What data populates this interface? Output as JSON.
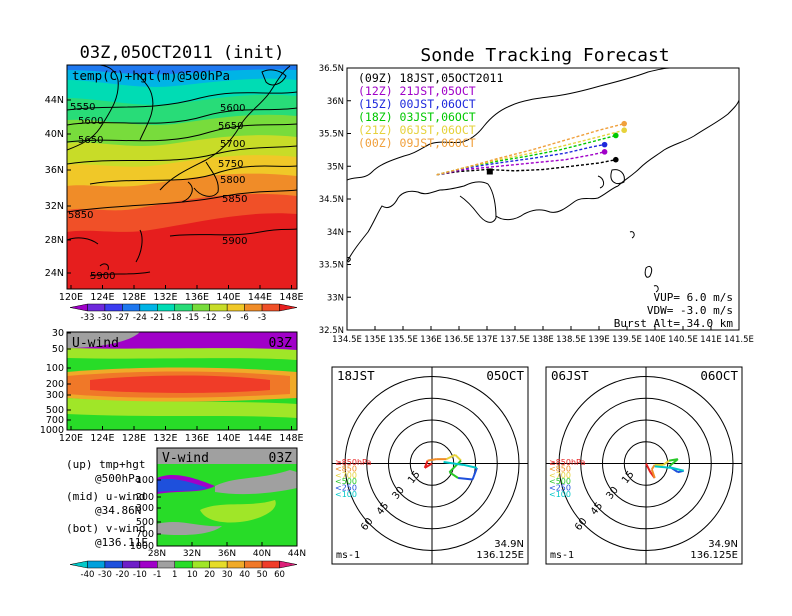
{
  "init_title": "03Z,05OCT2011 (init)",
  "main_title": "Sonde Tracking Forecast",
  "temp_panel": {
    "label": "temp(C)+hgt(m)@500hPa",
    "contours": [
      "5550",
      "5600",
      "5650",
      "5700",
      "5750",
      "5800",
      "5850",
      "5900"
    ],
    "colorbar_ticks": [
      "-33",
      "-30",
      "-27",
      "-24",
      "-21",
      "-18",
      "-15",
      "-12",
      "-9",
      "-6",
      "-3"
    ],
    "colorbar_colors": [
      "#a000c8",
      "#6e28dc",
      "#3c3cf0",
      "#1e78f0",
      "#00b4e6",
      "#00dcb4",
      "#28dc78",
      "#78dc3c",
      "#c8dc28",
      "#f0c828",
      "#f08c28",
      "#f05028",
      "#e61e1e"
    ],
    "lat_ticks": [
      "44N",
      "40N",
      "36N",
      "32N",
      "28N",
      "24N"
    ],
    "lon_ticks": [
      "120E",
      "124E",
      "128E",
      "132E",
      "136E",
      "140E",
      "144E",
      "148E"
    ]
  },
  "u_panel": {
    "label": "U-wind",
    "time": "03Z",
    "p_ticks": [
      "30",
      "50",
      "100",
      "200",
      "300",
      "500",
      "700",
      "1000"
    ],
    "lon_ticks": [
      "120E",
      "124E",
      "128E",
      "132E",
      "136E",
      "140E",
      "144E",
      "148E"
    ]
  },
  "v_panel": {
    "label": "V-wind",
    "time": "03Z",
    "p_ticks": [
      "100",
      "200",
      "300",
      "500",
      "700",
      "1000"
    ],
    "lat_ticks": [
      "28N",
      "32N",
      "36N",
      "40N",
      "44N"
    ],
    "colorbar_ticks": [
      "-40",
      "-30",
      "-20",
      "-10",
      "-1",
      "1",
      "10",
      "20",
      "30",
      "40",
      "50",
      "60"
    ],
    "colorbar_colors": [
      "#00c8c8",
      "#00a0dc",
      "#1e50dc",
      "#6e1ec8",
      "#a000c8",
      "#a0a0a0",
      "#28dc28",
      "#a0e628",
      "#e6dc28",
      "#f0aa28",
      "#f07828",
      "#f03c28",
      "#dc1e78"
    ]
  },
  "legend_text": {
    "up": "(up) tmp+hgt",
    "up2": "@500hPa",
    "mid": "(mid) u-wind",
    "mid2": "@34.86N",
    "bot": "(bot) v-wind",
    "bot2": "@136.11E"
  },
  "chart_data": {
    "type": "line",
    "title": "Sonde Tracking Forecast",
    "xlim": [
      134.5,
      141.5
    ],
    "ylim": [
      32.5,
      36.5
    ],
    "x_ticks": [
      "134.5E",
      "135E",
      "135.5E",
      "136E",
      "136.5E",
      "137E",
      "137.5E",
      "138E",
      "138.5E",
      "139E",
      "139.5E",
      "140E",
      "140.5E",
      "141E",
      "141.5E"
    ],
    "y_ticks": [
      "36.5N",
      "36N",
      "35.5N",
      "35N",
      "34.5N",
      "34N",
      "33.5N",
      "33N",
      "32.5N"
    ],
    "series": [
      {
        "name": "(09Z)  18JST,05OCT2011",
        "color": "#000000",
        "x": [
          136.1,
          136.5,
          137.0,
          137.5,
          138.0,
          138.5,
          139.0,
          139.3
        ],
        "y": [
          34.87,
          34.92,
          34.95,
          34.93,
          34.95,
          35.0,
          35.05,
          35.1
        ]
      },
      {
        "name": "(12Z)  21JST,05OCT",
        "color": "#a000c8",
        "x": [
          136.1,
          136.6,
          137.2,
          137.8,
          138.4,
          138.9,
          139.1
        ],
        "y": [
          34.87,
          34.95,
          35.0,
          35.05,
          35.1,
          35.18,
          35.22
        ]
      },
      {
        "name": "(15Z)  00JST,06OCT",
        "color": "#1e28dc",
        "x": [
          136.1,
          136.6,
          137.2,
          137.8,
          138.4,
          138.9,
          139.1
        ],
        "y": [
          34.87,
          34.97,
          35.05,
          35.12,
          35.2,
          35.3,
          35.33
        ]
      },
      {
        "name": "(18Z)  03JST,06OCT",
        "color": "#00c800",
        "x": [
          136.1,
          136.7,
          137.2,
          137.7,
          138.3,
          138.9,
          139.3
        ],
        "y": [
          34.87,
          35.0,
          35.08,
          35.15,
          35.25,
          35.38,
          35.47
        ]
      },
      {
        "name": "(21Z)  06JST,06OCT",
        "color": "#e6d23c",
        "x": [
          136.1,
          136.7,
          137.2,
          137.8,
          138.4,
          139.0,
          139.45
        ],
        "y": [
          34.87,
          35.0,
          35.1,
          35.2,
          35.32,
          35.45,
          35.55
        ]
      },
      {
        "name": "(00Z)  09JST,06OCT",
        "color": "#f0a03c",
        "x": [
          136.1,
          136.7,
          137.2,
          137.8,
          138.4,
          139.0,
          139.45
        ],
        "y": [
          34.87,
          35.0,
          35.12,
          35.25,
          35.4,
          35.55,
          35.65
        ]
      }
    ],
    "params": [
      "VUP=  6.0  m/s",
      "VDW=  -3.0  m/s",
      "Burst Alt=  34.0  km"
    ]
  },
  "hodographs": [
    {
      "left_label": "18JST",
      "right_label": "05OCT",
      "lat": "34.9N",
      "lon": "136.125E",
      "unit": "ms-1",
      "ring_labels": [
        "15",
        "30",
        "45",
        "60"
      ],
      "legend": [
        "≥850hPa",
        "<850",
        "<700",
        "<500",
        "<250",
        "<100"
      ],
      "legend_colors": [
        "#e61e1e",
        "#f08c28",
        "#e6d23c",
        "#28c828",
        "#1e50dc",
        "#00c8c8"
      ],
      "path_u": [
        0,
        -5,
        -3,
        3,
        10,
        16,
        20,
        12,
        18,
        28,
        31,
        22,
        8
      ],
      "path_v": [
        0,
        -3,
        2,
        3,
        3,
        6,
        2,
        -6,
        -10,
        -11,
        -3,
        -1,
        1
      ]
    },
    {
      "left_label": "06JST",
      "right_label": "06OCT",
      "lat": "34.9N",
      "lon": "136.125E",
      "unit": "ms-1",
      "ring_labels": [
        "15",
        "30",
        "45",
        "60"
      ],
      "legend": [
        "≥850hPa",
        "<850",
        "<700",
        "<500",
        "<250",
        "<100"
      ],
      "legend_colors": [
        "#e61e1e",
        "#f08c28",
        "#e6d23c",
        "#28c828",
        "#1e50dc",
        "#00c8c8"
      ],
      "path_u": [
        0,
        3,
        6,
        4,
        6,
        12,
        16,
        22,
        16,
        22,
        26,
        18,
        6
      ],
      "path_v": [
        0,
        -6,
        -10,
        -4,
        -1,
        -1,
        2,
        3,
        -2,
        -6,
        -5,
        -3,
        -2
      ]
    }
  ]
}
